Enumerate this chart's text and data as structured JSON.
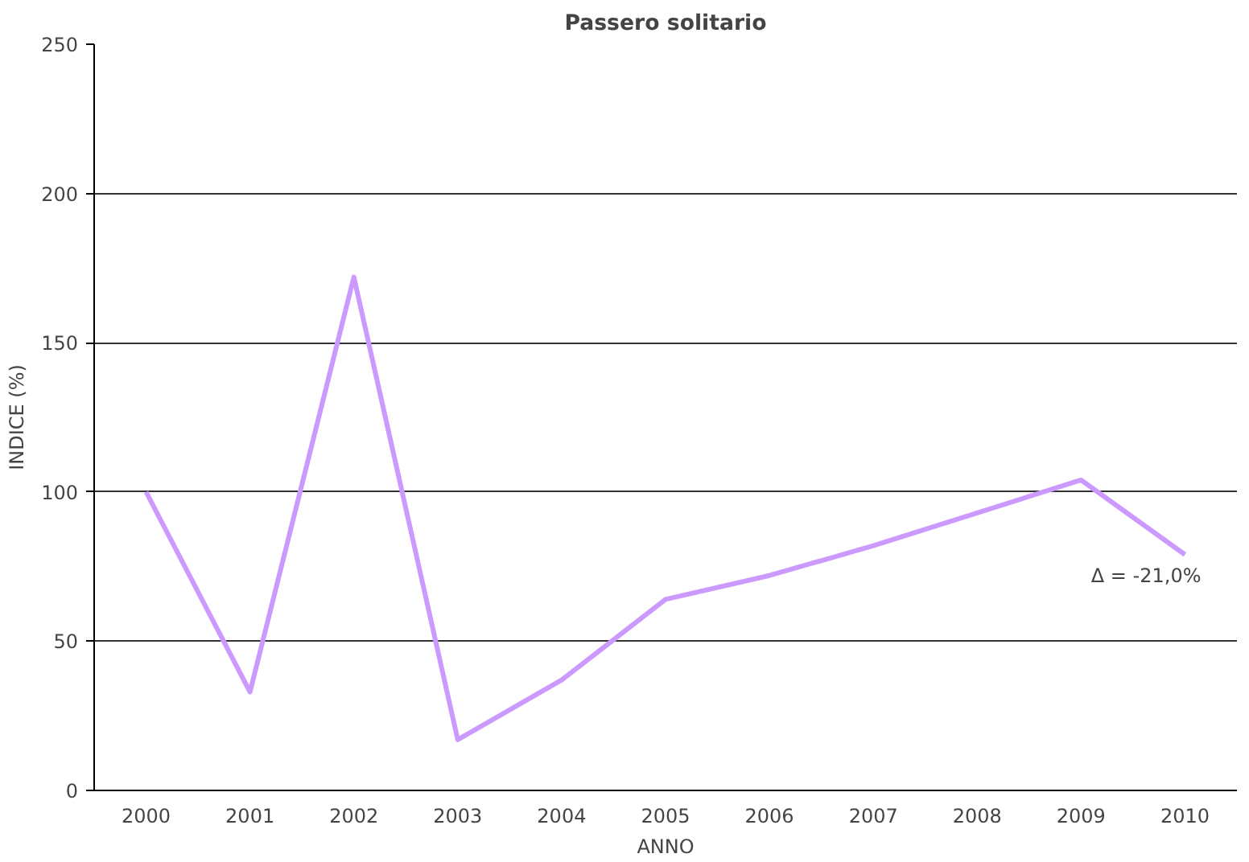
{
  "chart_data": {
    "type": "line",
    "title": "Passero solitario",
    "xlabel": "ANNO",
    "ylabel": "INDICE (%)",
    "categories": [
      "2000",
      "2001",
      "2002",
      "2003",
      "2004",
      "2005",
      "2006",
      "2007",
      "2008",
      "2009",
      "2010"
    ],
    "series": [
      {
        "color": "#cc99ff",
        "values": [
          100,
          33,
          172,
          17,
          37,
          64,
          72,
          82,
          93,
          104,
          79
        ]
      }
    ],
    "ylim": [
      0,
      250
    ],
    "yticks": [
      0,
      50,
      100,
      150,
      200,
      250
    ],
    "grid": "y",
    "marker": "none",
    "line_style": "solid",
    "annotations": [
      {
        "text": "Δ = -21,0%",
        "x": "2010",
        "y": 79
      }
    ]
  }
}
